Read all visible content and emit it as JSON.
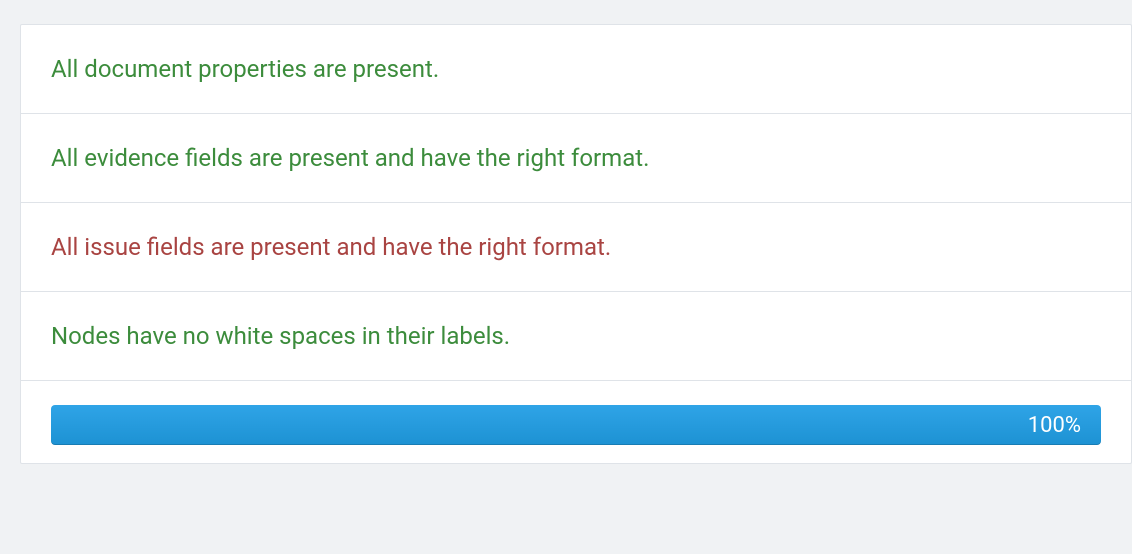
{
  "checks": [
    {
      "label": "All document properties are present.",
      "status": "pass"
    },
    {
      "label": "All evidence fields are present and have the right format.",
      "status": "pass"
    },
    {
      "label": "All issue fields are present and have the right format.",
      "status": "fail"
    },
    {
      "label": "Nodes have no white spaces in their labels.",
      "status": "pass"
    }
  ],
  "progress": {
    "percent": 100,
    "label": "100%",
    "bar_color_top": "#2fa4e7",
    "bar_color_bottom": "#1d92d3"
  },
  "colors": {
    "pass": "#3c8c3c",
    "fail": "#a94442",
    "background": "#f0f2f4",
    "panel_border": "#dfe3e8"
  }
}
